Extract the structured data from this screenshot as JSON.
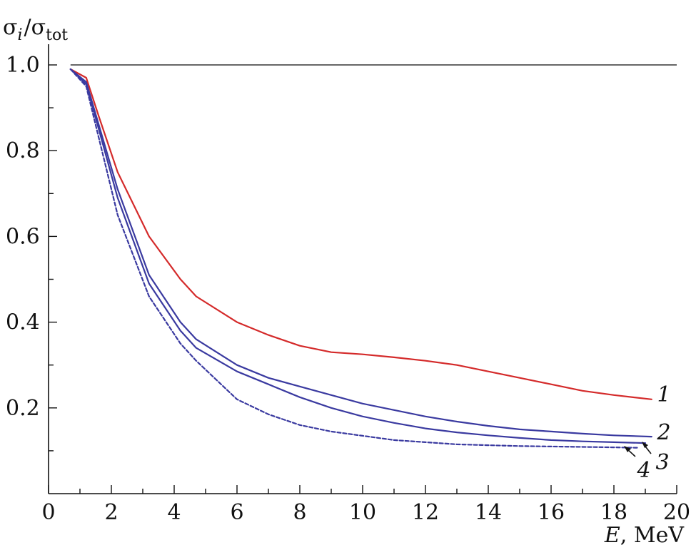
{
  "chart_data": {
    "type": "line",
    "ylabel_main": "σ",
    "ylabel_sub_i": "i",
    "ylabel_slash": "/σ",
    "ylabel_sub_tot": "tot",
    "xlabel_var": "E",
    "xlabel_unit": ", MeV",
    "xlim": [
      0,
      20
    ],
    "ylim": [
      0,
      1.05
    ],
    "x_ticks": [
      0,
      2,
      4,
      6,
      8,
      10,
      12,
      14,
      16,
      18,
      20
    ],
    "x_tick_labels": [
      "0",
      "2",
      "4",
      "6",
      "8",
      "10",
      "12",
      "14",
      "16",
      "18",
      "20"
    ],
    "y_ticks": [
      0.2,
      0.4,
      0.6,
      0.8,
      1.0
    ],
    "y_tick_labels": [
      "0.2",
      "0.4",
      "0.6",
      "0.8",
      "1.0"
    ],
    "reference_line": {
      "y": 1.0,
      "x": [
        0.7,
        20
      ],
      "color": "#333333"
    },
    "series": [
      {
        "label": "1",
        "color": "#d42a2a",
        "dashed": false,
        "x": [
          0.7,
          1.2,
          1.6,
          2.2,
          3.2,
          4.2,
          4.7,
          6.0,
          7.0,
          8.0,
          9.0,
          10.0,
          11.0,
          12.0,
          13.0,
          14.0,
          15.0,
          16.0,
          17.0,
          18.0,
          19.2
        ],
        "y": [
          0.99,
          0.97,
          0.88,
          0.75,
          0.6,
          0.5,
          0.46,
          0.4,
          0.37,
          0.345,
          0.33,
          0.325,
          0.318,
          0.31,
          0.3,
          0.285,
          0.27,
          0.255,
          0.24,
          0.23,
          0.22
        ]
      },
      {
        "label": "2",
        "color": "#3a3aa0",
        "dashed": false,
        "x": [
          0.7,
          1.2,
          1.6,
          2.2,
          3.2,
          4.2,
          4.7,
          6.0,
          7.0,
          8.0,
          9.0,
          10.0,
          11.0,
          12.0,
          13.0,
          14.0,
          15.0,
          16.0,
          17.0,
          18.0,
          19.2
        ],
        "y": [
          0.99,
          0.96,
          0.86,
          0.71,
          0.51,
          0.4,
          0.36,
          0.3,
          0.27,
          0.25,
          0.23,
          0.21,
          0.195,
          0.18,
          0.168,
          0.158,
          0.15,
          0.145,
          0.14,
          0.136,
          0.133
        ]
      },
      {
        "label": "3",
        "color": "#3a3aa0",
        "dashed": false,
        "x": [
          0.7,
          1.2,
          1.6,
          2.2,
          3.2,
          4.2,
          4.7,
          6.0,
          7.0,
          8.0,
          9.0,
          10.0,
          11.0,
          12.0,
          13.0,
          14.0,
          15.0,
          16.0,
          17.0,
          18.0,
          19.0
        ],
        "y": [
          0.99,
          0.955,
          0.85,
          0.69,
          0.49,
          0.38,
          0.34,
          0.285,
          0.255,
          0.225,
          0.2,
          0.18,
          0.165,
          0.152,
          0.143,
          0.136,
          0.13,
          0.125,
          0.122,
          0.12,
          0.118
        ]
      },
      {
        "label": "4",
        "color": "#3a3aa0",
        "dashed": true,
        "x": [
          0.7,
          1.2,
          1.6,
          2.2,
          3.2,
          4.2,
          4.7,
          6.0,
          7.0,
          8.0,
          9.0,
          10.0,
          11.0,
          12.0,
          13.0,
          14.0,
          15.0,
          16.0,
          17.0,
          18.0,
          18.8
        ],
        "y": [
          0.99,
          0.95,
          0.83,
          0.65,
          0.46,
          0.35,
          0.31,
          0.22,
          0.185,
          0.16,
          0.145,
          0.135,
          0.125,
          0.12,
          0.115,
          0.113,
          0.111,
          0.11,
          0.109,
          0.108,
          0.107
        ]
      }
    ]
  }
}
